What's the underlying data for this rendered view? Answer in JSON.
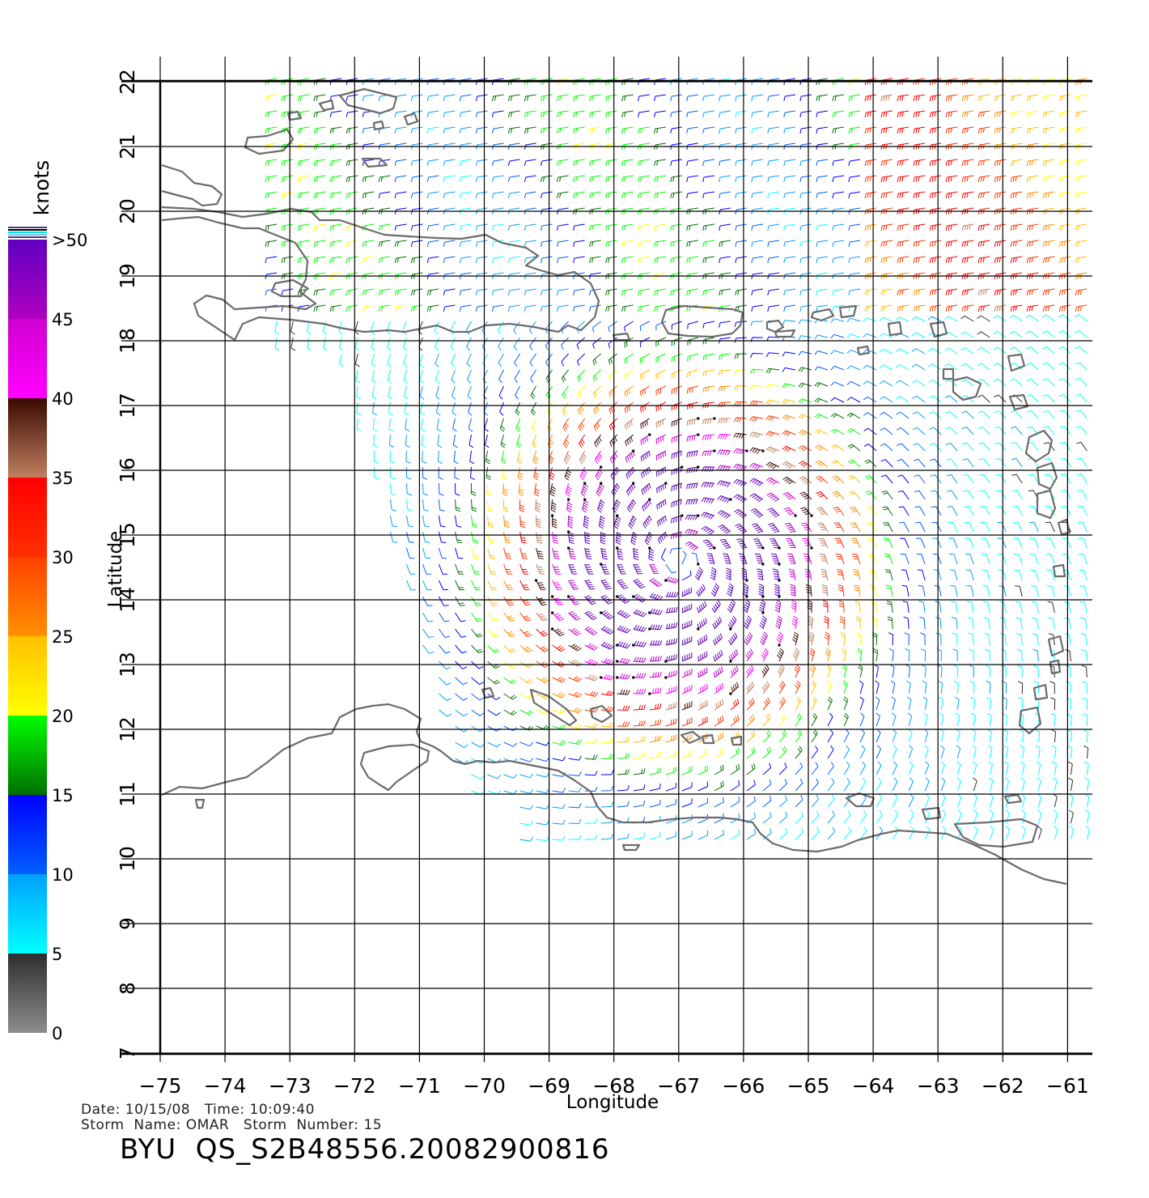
{
  "map": {
    "lon_range": [
      -75,
      -61
    ],
    "lat_range": [
      7,
      22
    ],
    "lon_ticks": [
      -75,
      -74,
      -73,
      -72,
      -71,
      -70,
      -69,
      -68,
      -67,
      -66,
      -65,
      -64,
      -63,
      -62,
      -61
    ],
    "lat_ticks": [
      7,
      8,
      9,
      10,
      11,
      12,
      13,
      14,
      15,
      16,
      17,
      18,
      19,
      20,
      21,
      22
    ],
    "xlabel": "Longitude",
    "ylabel": "Latitude",
    "grid": true,
    "coastline_color": "#6b6b6b",
    "storm_center": {
      "lon": -67.0,
      "lat": 14.6
    }
  },
  "legend": {
    "title": "knots",
    "stops": [
      {
        "label": "0",
        "value": 0
      },
      {
        "label": "5",
        "value": 5
      },
      {
        "label": "10",
        "value": 10
      },
      {
        "label": "15",
        "value": 15
      },
      {
        "label": "20",
        "value": 20
      },
      {
        "label": "25",
        "value": 25
      },
      {
        "label": "30",
        "value": 30
      },
      {
        "label": "35",
        "value": 35
      },
      {
        "label": "40",
        "value": 40
      },
      {
        "label": "45",
        "value": 45
      },
      {
        "label": ">50",
        "value": 50
      }
    ],
    "bands": [
      {
        "from": 0,
        "to": 5,
        "colors": [
          "#8c8c8c",
          "#2e2e2e"
        ]
      },
      {
        "from": 5,
        "to": 10,
        "colors": [
          "#00ffff",
          "#00a0ff"
        ]
      },
      {
        "from": 10,
        "to": 15,
        "colors": [
          "#0060ff",
          "#0000ff"
        ]
      },
      {
        "from": 15,
        "to": 20,
        "colors": [
          "#007000",
          "#00ff00"
        ]
      },
      {
        "from": 20,
        "to": 25,
        "colors": [
          "#ffff00",
          "#ffc000"
        ]
      },
      {
        "from": 25,
        "to": 30,
        "colors": [
          "#ff9000",
          "#ff4000"
        ]
      },
      {
        "from": 30,
        "to": 35,
        "colors": [
          "#ff3000",
          "#ff0000"
        ]
      },
      {
        "from": 35,
        "to": 40,
        "colors": [
          "#c08060",
          "#3a0a00"
        ]
      },
      {
        "from": 40,
        "to": 45,
        "colors": [
          "#ff00ff",
          "#d000d0"
        ]
      },
      {
        "from": 45,
        "to": 50,
        "colors": [
          "#b000c0",
          "#6000c0"
        ]
      }
    ]
  },
  "footer": {
    "info_line1": "Date: 10/15/08   Time: 10:09:40",
    "info_line2": "Storm  Name: OMAR   Storm  Number: 15",
    "product": "BYU  QS_S2B48556.20082900816"
  }
}
